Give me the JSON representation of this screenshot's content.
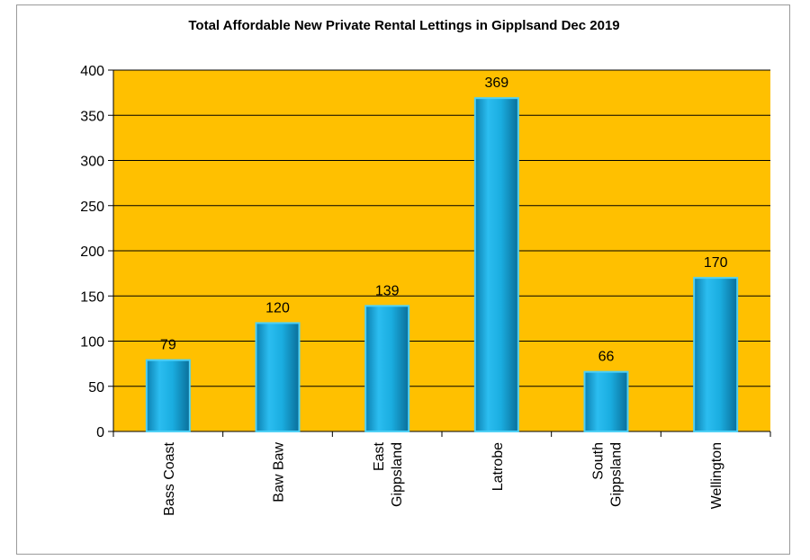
{
  "chart_data": {
    "type": "bar",
    "title": "Total Affordable New Private Rental Lettings in Gipplsand Dec 2019",
    "categories": [
      [
        "Bass Coast"
      ],
      [
        "Baw Baw"
      ],
      [
        "East",
        "Gippsland"
      ],
      [
        "Latrobe"
      ],
      [
        "South",
        "Gippsland"
      ],
      [
        "Wellington"
      ]
    ],
    "values": [
      79,
      120,
      139,
      369,
      66,
      170
    ],
    "ylim": [
      0,
      400
    ],
    "yticks": [
      0,
      50,
      100,
      150,
      200,
      250,
      300,
      350,
      400
    ],
    "grid": true,
    "colors": {
      "plot_background": "#FFC000",
      "bar_fill": "#1AADE0",
      "bar_edge": "#0E7FA6",
      "gridline": "#000000"
    }
  }
}
